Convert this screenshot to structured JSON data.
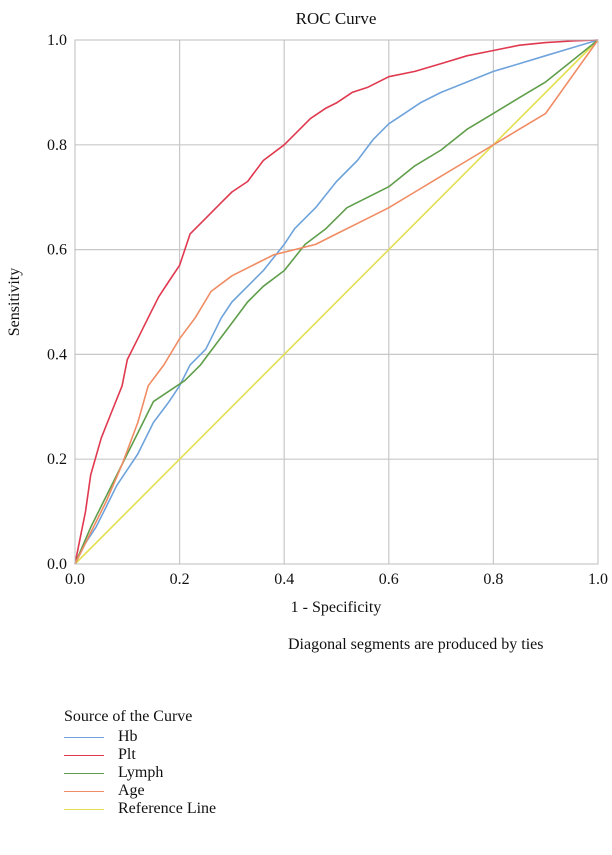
{
  "chart_data": {
    "type": "line",
    "title": "ROC Curve",
    "xlabel": "1 - Specificity",
    "ylabel": "Sensitivity",
    "xlim": [
      0,
      1
    ],
    "ylim": [
      0,
      1
    ],
    "xticks": [
      "0.0",
      "0.2",
      "0.4",
      "0.6",
      "0.8",
      "1.0"
    ],
    "yticks": [
      "0.0",
      "0.2",
      "0.4",
      "0.6",
      "0.8",
      "1.0"
    ],
    "grid": true,
    "note": "Diagonal segments are produced by ties",
    "legend_title": "Source of the Curve",
    "legend_position": "bottom-left",
    "series": [
      {
        "name": "Hb",
        "color": "#6fa3dc",
        "x": [
          0,
          0.02,
          0.04,
          0.06,
          0.08,
          0.1,
          0.12,
          0.15,
          0.18,
          0.2,
          0.22,
          0.25,
          0.28,
          0.3,
          0.33,
          0.36,
          0.4,
          0.42,
          0.46,
          0.5,
          0.54,
          0.57,
          0.6,
          0.63,
          0.66,
          0.7,
          0.75,
          0.8,
          0.85,
          0.9,
          0.95,
          1.0
        ],
        "y": [
          0,
          0.04,
          0.07,
          0.11,
          0.15,
          0.18,
          0.21,
          0.27,
          0.31,
          0.34,
          0.38,
          0.41,
          0.47,
          0.5,
          0.53,
          0.56,
          0.61,
          0.64,
          0.68,
          0.73,
          0.77,
          0.81,
          0.84,
          0.86,
          0.88,
          0.9,
          0.92,
          0.94,
          0.955,
          0.97,
          0.985,
          1.0
        ]
      },
      {
        "name": "Plt",
        "color": "#e0394f",
        "x": [
          0,
          0.01,
          0.02,
          0.03,
          0.05,
          0.07,
          0.09,
          0.1,
          0.12,
          0.14,
          0.16,
          0.18,
          0.2,
          0.22,
          0.25,
          0.28,
          0.3,
          0.33,
          0.36,
          0.4,
          0.42,
          0.45,
          0.48,
          0.5,
          0.53,
          0.56,
          0.6,
          0.65,
          0.7,
          0.75,
          0.8,
          0.85,
          0.9,
          0.95,
          1.0
        ],
        "y": [
          0,
          0.05,
          0.1,
          0.17,
          0.24,
          0.29,
          0.34,
          0.39,
          0.43,
          0.47,
          0.51,
          0.54,
          0.57,
          0.63,
          0.66,
          0.69,
          0.71,
          0.73,
          0.77,
          0.8,
          0.82,
          0.85,
          0.87,
          0.88,
          0.9,
          0.91,
          0.93,
          0.94,
          0.955,
          0.97,
          0.98,
          0.99,
          0.995,
          0.998,
          1.0
        ]
      },
      {
        "name": "Lymph",
        "color": "#5f9e4a",
        "x": [
          0,
          0.03,
          0.06,
          0.09,
          0.12,
          0.15,
          0.18,
          0.21,
          0.24,
          0.27,
          0.3,
          0.33,
          0.36,
          0.4,
          0.44,
          0.48,
          0.52,
          0.56,
          0.6,
          0.65,
          0.7,
          0.75,
          0.8,
          0.85,
          0.9,
          0.95,
          1.0
        ],
        "y": [
          0,
          0.07,
          0.13,
          0.19,
          0.25,
          0.31,
          0.33,
          0.35,
          0.38,
          0.42,
          0.46,
          0.5,
          0.53,
          0.56,
          0.61,
          0.64,
          0.68,
          0.7,
          0.72,
          0.76,
          0.79,
          0.83,
          0.86,
          0.89,
          0.92,
          0.96,
          1.0
        ]
      },
      {
        "name": "Age",
        "color": "#f08c64",
        "x": [
          0,
          0.03,
          0.06,
          0.09,
          0.12,
          0.14,
          0.17,
          0.2,
          0.23,
          0.26,
          0.3,
          0.34,
          0.38,
          0.42,
          0.46,
          0.5,
          0.55,
          0.6,
          0.65,
          0.7,
          0.75,
          0.8,
          0.85,
          0.9,
          0.95,
          1.0
        ],
        "y": [
          0,
          0.06,
          0.12,
          0.19,
          0.27,
          0.34,
          0.38,
          0.43,
          0.47,
          0.52,
          0.55,
          0.57,
          0.59,
          0.6,
          0.61,
          0.63,
          0.655,
          0.68,
          0.71,
          0.74,
          0.77,
          0.8,
          0.83,
          0.86,
          0.93,
          1.0
        ]
      },
      {
        "name": "Reference Line",
        "color": "#e3df4f",
        "x": [
          0,
          1
        ],
        "y": [
          0,
          1
        ]
      }
    ]
  }
}
